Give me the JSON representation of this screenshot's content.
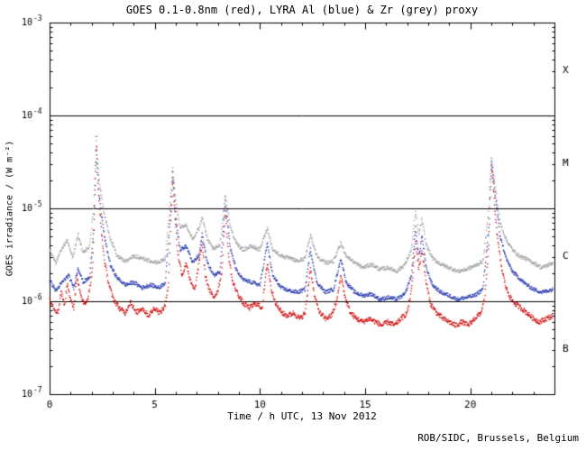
{
  "footer": {
    "credit": "ROB/SIDC, Brussels, Belgium"
  },
  "chart_data": {
    "type": "scatter",
    "title": "GOES 0.1-0.8nm (red), LYRA Al (blue) & Zr (grey) proxy",
    "xlabel": "Time / h UTC, 13 Nov 2012",
    "ylabel": "GOES irradiance / (W m⁻²)",
    "xlim": [
      0,
      24
    ],
    "ylim_exp": [
      -7,
      -3
    ],
    "x_ticks_major": [
      0,
      5,
      10,
      15,
      20
    ],
    "x_minor_step": 1,
    "y_tick_exponents": [
      -3,
      -4,
      -5,
      -6,
      -7
    ],
    "hlines": [
      0.0001,
      1e-05,
      1e-06
    ],
    "flare_classes": [
      {
        "label": "X",
        "value": 0.000316
      },
      {
        "label": "M",
        "value": 3.16e-05
      },
      {
        "label": "C",
        "value": 3.16e-06
      },
      {
        "label": "B",
        "value": 3.16e-07
      }
    ],
    "series": [
      {
        "name": "LYRA Zr proxy",
        "color": "#a0a0a0",
        "points": [
          [
            0.0,
            3.6e-06
          ],
          [
            0.3,
            2.6e-06
          ],
          [
            0.55,
            3.6e-06
          ],
          [
            0.85,
            4.6e-06
          ],
          [
            1.1,
            2.9e-06
          ],
          [
            1.35,
            5.2e-06
          ],
          [
            1.6,
            3.3e-06
          ],
          [
            1.9,
            3.9e-06
          ],
          [
            2.1,
            1.1e-05
          ],
          [
            2.22,
            5.2e-05
          ],
          [
            2.35,
            2.1e-05
          ],
          [
            2.6,
            8.5e-06
          ],
          [
            2.9,
            4.6e-06
          ],
          [
            3.2,
            3.1e-06
          ],
          [
            3.6,
            2.7e-06
          ],
          [
            4.0,
            3.1e-06
          ],
          [
            4.4,
            2.9e-06
          ],
          [
            4.8,
            2.7e-06
          ],
          [
            5.2,
            2.6e-06
          ],
          [
            5.5,
            2.9e-06
          ],
          [
            5.78,
            1.6e-05
          ],
          [
            5.85,
            2.8e-05
          ],
          [
            6.0,
            1.2e-05
          ],
          [
            6.2,
            6.2e-06
          ],
          [
            6.5,
            6.6e-06
          ],
          [
            6.8,
            4.6e-06
          ],
          [
            7.1,
            6.1e-06
          ],
          [
            7.25,
            8.2e-06
          ],
          [
            7.5,
            4.6e-06
          ],
          [
            7.8,
            3.6e-06
          ],
          [
            8.1,
            4.1e-06
          ],
          [
            8.35,
            1.4e-05
          ],
          [
            8.6,
            6.2e-06
          ],
          [
            8.9,
            4.1e-06
          ],
          [
            9.2,
            3.6e-06
          ],
          [
            9.6,
            3.9e-06
          ],
          [
            10.0,
            3.6e-06
          ],
          [
            10.35,
            6.2e-06
          ],
          [
            10.6,
            3.6e-06
          ],
          [
            11.0,
            3.1e-06
          ],
          [
            11.4,
            2.9e-06
          ],
          [
            11.8,
            2.7e-06
          ],
          [
            12.15,
            2.9e-06
          ],
          [
            12.4,
            5.2e-06
          ],
          [
            12.7,
            3.1e-06
          ],
          [
            13.1,
            2.6e-06
          ],
          [
            13.5,
            2.7e-06
          ],
          [
            13.85,
            4.2e-06
          ],
          [
            14.1,
            3.1e-06
          ],
          [
            14.5,
            2.6e-06
          ],
          [
            14.9,
            2.3e-06
          ],
          [
            15.3,
            2.5e-06
          ],
          [
            15.7,
            2.2e-06
          ],
          [
            16.1,
            2.3e-06
          ],
          [
            16.5,
            2.1e-06
          ],
          [
            16.9,
            2.5e-06
          ],
          [
            17.2,
            3.6e-06
          ],
          [
            17.4,
            9.2e-06
          ],
          [
            17.55,
            5.2e-06
          ],
          [
            17.7,
            7.6e-06
          ],
          [
            17.9,
            4.1e-06
          ],
          [
            18.2,
            2.9e-06
          ],
          [
            18.6,
            2.5e-06
          ],
          [
            19.0,
            2.3e-06
          ],
          [
            19.4,
            2.1e-06
          ],
          [
            19.8,
            2.2e-06
          ],
          [
            20.2,
            2.4e-06
          ],
          [
            20.6,
            2.7e-06
          ],
          [
            20.87,
            9e-06
          ],
          [
            21.0,
            3.6e-05
          ],
          [
            21.2,
            1.6e-05
          ],
          [
            21.4,
            7.2e-06
          ],
          [
            21.7,
            4.6e-06
          ],
          [
            22.0,
            3.6e-06
          ],
          [
            22.3,
            3.1e-06
          ],
          [
            22.6,
            2.9e-06
          ],
          [
            23.0,
            2.6e-06
          ],
          [
            23.4,
            2.3e-06
          ],
          [
            23.95,
            2.6e-06
          ]
        ]
      },
      {
        "name": "LYRA Al proxy",
        "color": "#2233aa",
        "points": [
          [
            0.0,
            1.7e-06
          ],
          [
            0.3,
            1.3e-06
          ],
          [
            0.6,
            1.6e-06
          ],
          [
            0.9,
            1.9e-06
          ],
          [
            1.15,
            1.4e-06
          ],
          [
            1.35,
            2.3e-06
          ],
          [
            1.6,
            1.6e-06
          ],
          [
            1.9,
            1.8e-06
          ],
          [
            2.1,
            6e-06
          ],
          [
            2.22,
            4.2e-05
          ],
          [
            2.35,
            1.4e-05
          ],
          [
            2.6,
            5e-06
          ],
          [
            2.9,
            2.4e-06
          ],
          [
            3.2,
            1.8e-06
          ],
          [
            3.6,
            1.5e-06
          ],
          [
            4.0,
            1.6e-06
          ],
          [
            4.4,
            1.4e-06
          ],
          [
            4.8,
            1.5e-06
          ],
          [
            5.2,
            1.4e-06
          ],
          [
            5.5,
            1.6e-06
          ],
          [
            5.78,
            1.1e-05
          ],
          [
            5.85,
            2.4e-05
          ],
          [
            6.0,
            8e-06
          ],
          [
            6.2,
            3.6e-06
          ],
          [
            6.5,
            3.9e-06
          ],
          [
            6.8,
            2.6e-06
          ],
          [
            7.1,
            3.1e-06
          ],
          [
            7.25,
            5.2e-06
          ],
          [
            7.5,
            2.6e-06
          ],
          [
            7.8,
            1.9e-06
          ],
          [
            8.1,
            2.1e-06
          ],
          [
            8.35,
            1.2e-05
          ],
          [
            8.6,
            3.6e-06
          ],
          [
            8.9,
            2.1e-06
          ],
          [
            9.2,
            1.7e-06
          ],
          [
            9.6,
            1.6e-06
          ],
          [
            10.0,
            1.5e-06
          ],
          [
            10.35,
            4.2e-06
          ],
          [
            10.6,
            1.9e-06
          ],
          [
            11.0,
            1.4e-06
          ],
          [
            11.4,
            1.3e-06
          ],
          [
            11.8,
            1.25e-06
          ],
          [
            12.15,
            1.35e-06
          ],
          [
            12.4,
            3.6e-06
          ],
          [
            12.7,
            1.6e-06
          ],
          [
            13.1,
            1.25e-06
          ],
          [
            13.5,
            1.35e-06
          ],
          [
            13.85,
            2.9e-06
          ],
          [
            14.1,
            1.6e-06
          ],
          [
            14.5,
            1.25e-06
          ],
          [
            14.9,
            1.15e-06
          ],
          [
            15.3,
            1.2e-06
          ],
          [
            15.7,
            1.05e-06
          ],
          [
            16.1,
            1.1e-06
          ],
          [
            16.5,
            1.05e-06
          ],
          [
            16.9,
            1.2e-06
          ],
          [
            17.2,
            1.9e-06
          ],
          [
            17.4,
            6.2e-06
          ],
          [
            17.55,
            2.9e-06
          ],
          [
            17.7,
            5.1e-06
          ],
          [
            17.9,
            2.3e-06
          ],
          [
            18.2,
            1.5e-06
          ],
          [
            18.6,
            1.25e-06
          ],
          [
            19.0,
            1.15e-06
          ],
          [
            19.4,
            1.05e-06
          ],
          [
            19.8,
            1.1e-06
          ],
          [
            20.2,
            1.15e-06
          ],
          [
            20.6,
            1.35e-06
          ],
          [
            20.87,
            6e-06
          ],
          [
            21.0,
            3.2e-05
          ],
          [
            21.2,
            1.3e-05
          ],
          [
            21.4,
            5.2e-06
          ],
          [
            21.7,
            2.9e-06
          ],
          [
            22.0,
            2.1e-06
          ],
          [
            22.3,
            1.8e-06
          ],
          [
            22.6,
            1.55e-06
          ],
          [
            23.0,
            1.35e-06
          ],
          [
            23.4,
            1.25e-06
          ],
          [
            23.95,
            1.35e-06
          ]
        ]
      },
      {
        "name": "GOES 0.1-0.8nm",
        "color": "#cc0000",
        "points": [
          [
            0.0,
            1.1e-06
          ],
          [
            0.2,
            8.5e-07
          ],
          [
            0.4,
            7.5e-07
          ],
          [
            0.55,
            1.3e-06
          ],
          [
            0.7,
            9e-07
          ],
          [
            0.85,
            1.6e-06
          ],
          [
            1.0,
            1e-06
          ],
          [
            1.15,
            8.5e-07
          ],
          [
            1.3,
            1.9e-06
          ],
          [
            1.5,
            1.1e-06
          ],
          [
            1.7,
            9e-07
          ],
          [
            1.9,
            1.3e-06
          ],
          [
            2.05,
            2.5e-06
          ],
          [
            2.15,
            1.5e-05
          ],
          [
            2.22,
            6e-05
          ],
          [
            2.3,
            1.8e-05
          ],
          [
            2.45,
            6e-06
          ],
          [
            2.6,
            2.8e-06
          ],
          [
            2.8,
            1.6e-06
          ],
          [
            3.0,
            1.1e-06
          ],
          [
            3.3,
            8.5e-07
          ],
          [
            3.6,
            7.5e-07
          ],
          [
            3.85,
            1e-06
          ],
          [
            4.1,
            7.5e-07
          ],
          [
            4.4,
            8.5e-07
          ],
          [
            4.7,
            7e-07
          ],
          [
            5.0,
            8.5e-07
          ],
          [
            5.25,
            7.5e-07
          ],
          [
            5.5,
            9e-07
          ],
          [
            5.65,
            1.6e-06
          ],
          [
            5.78,
            9e-06
          ],
          [
            5.85,
            2.2e-05
          ],
          [
            5.95,
            9e-06
          ],
          [
            6.1,
            3.2e-06
          ],
          [
            6.3,
            1.9e-06
          ],
          [
            6.5,
            2.6e-06
          ],
          [
            6.7,
            1.6e-06
          ],
          [
            6.9,
            1.3e-06
          ],
          [
            7.1,
            2.6e-06
          ],
          [
            7.25,
            4.2e-06
          ],
          [
            7.4,
            1.9e-06
          ],
          [
            7.6,
            1.3e-06
          ],
          [
            7.8,
            1.1e-06
          ],
          [
            8.0,
            1.3e-06
          ],
          [
            8.2,
            2.2e-06
          ],
          [
            8.35,
            1e-05
          ],
          [
            8.5,
            3.2e-06
          ],
          [
            8.7,
            1.6e-06
          ],
          [
            8.95,
            1.2e-06
          ],
          [
            9.2,
            9.5e-07
          ],
          [
            9.5,
            8.5e-07
          ],
          [
            9.8,
            9.5e-07
          ],
          [
            10.1,
            8.5e-07
          ],
          [
            10.35,
            2.6e-06
          ],
          [
            10.55,
            1.3e-06
          ],
          [
            10.8,
            9e-07
          ],
          [
            11.05,
            7.5e-07
          ],
          [
            11.3,
            7e-07
          ],
          [
            11.6,
            7.5e-07
          ],
          [
            11.9,
            6.5e-07
          ],
          [
            12.15,
            7.5e-07
          ],
          [
            12.4,
            2.3e-06
          ],
          [
            12.6,
            1.1e-06
          ],
          [
            12.85,
            7.5e-07
          ],
          [
            13.1,
            6.5e-07
          ],
          [
            13.4,
            7e-07
          ],
          [
            13.65,
            1e-06
          ],
          [
            13.85,
            1.9e-06
          ],
          [
            14.05,
            1.1e-06
          ],
          [
            14.3,
            7.5e-07
          ],
          [
            14.6,
            6.5e-07
          ],
          [
            14.9,
            6e-07
          ],
          [
            15.2,
            6.5e-07
          ],
          [
            15.5,
            6e-07
          ],
          [
            15.8,
            5.5e-07
          ],
          [
            16.1,
            6e-07
          ],
          [
            16.4,
            5.5e-07
          ],
          [
            16.7,
            6.5e-07
          ],
          [
            17.0,
            7.5e-07
          ],
          [
            17.2,
            1.3e-06
          ],
          [
            17.4,
            4.6e-06
          ],
          [
            17.55,
            2.2e-06
          ],
          [
            17.7,
            3.6e-06
          ],
          [
            17.9,
            1.6e-06
          ],
          [
            18.1,
            9.5e-07
          ],
          [
            18.4,
            7.5e-07
          ],
          [
            18.7,
            6.5e-07
          ],
          [
            19.0,
            6e-07
          ],
          [
            19.3,
            5.5e-07
          ],
          [
            19.6,
            6e-07
          ],
          [
            19.9,
            5.5e-07
          ],
          [
            20.2,
            6.5e-07
          ],
          [
            20.5,
            7.5e-07
          ],
          [
            20.7,
            1.1e-06
          ],
          [
            20.87,
            4e-06
          ],
          [
            21.0,
            3e-05
          ],
          [
            21.15,
            1.1e-05
          ],
          [
            21.3,
            4.5e-06
          ],
          [
            21.5,
            2.2e-06
          ],
          [
            21.7,
            1.4e-06
          ],
          [
            21.9,
            1.1e-06
          ],
          [
            22.1,
            9.5e-07
          ],
          [
            22.4,
            8.5e-07
          ],
          [
            22.7,
            7.5e-07
          ],
          [
            23.0,
            6.5e-07
          ],
          [
            23.3,
            6e-07
          ],
          [
            23.6,
            6.5e-07
          ],
          [
            23.95,
            7e-07
          ]
        ]
      }
    ]
  }
}
